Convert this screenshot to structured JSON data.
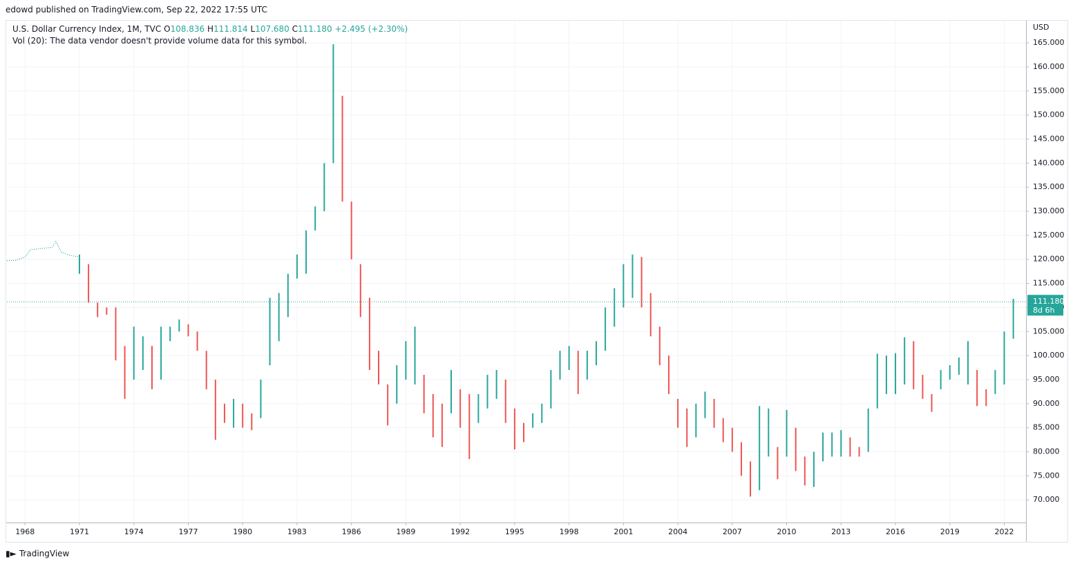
{
  "header": {
    "text": "edowd published on TradingView.com, Sep 22, 2022 17:55 UTC"
  },
  "chart_data": {
    "type": "range_bar",
    "title": "U.S. Dollar Currency Index, 1M, TVC",
    "legend": {
      "o_label": "O",
      "open": "108.836",
      "h_label": "H",
      "high": "111.814",
      "l_label": "L",
      "low": "107.680",
      "c_label": "C",
      "close": "111.180",
      "change": "+2.495 (+2.30%)"
    },
    "volume_note": "Vol (20): The data vendor doesn't provide volume data for this symbol.",
    "currency": "USD",
    "last_price": 111.18,
    "last_price_label": "111.180",
    "countdown": "8d 6h",
    "up_color": "#26a69a",
    "down_color": "#ef5350",
    "grid": true,
    "xlim": [
      1967,
      2023.2
    ],
    "ylim": [
      65.3,
      169.6
    ],
    "xticks": [
      1968,
      1971,
      1974,
      1977,
      1980,
      1983,
      1986,
      1989,
      1992,
      1995,
      1998,
      2001,
      2004,
      2007,
      2010,
      2013,
      2016,
      2019,
      2022
    ],
    "yticks": [
      {
        "value": 70,
        "label": "70.000"
      },
      {
        "value": 75,
        "label": "75.000"
      },
      {
        "value": 80,
        "label": "80.000"
      },
      {
        "value": 85,
        "label": "85.000"
      },
      {
        "value": 90,
        "label": "90.000"
      },
      {
        "value": 95,
        "label": "95.000"
      },
      {
        "value": 100,
        "label": "100.000"
      },
      {
        "value": 105,
        "label": "105.000"
      },
      {
        "value": 110,
        "label": "110.000"
      },
      {
        "value": 115,
        "label": "115.000"
      },
      {
        "value": 120,
        "label": "120.000"
      },
      {
        "value": 125,
        "label": "125.000"
      },
      {
        "value": 130,
        "label": "130.000"
      },
      {
        "value": 135,
        "label": "135.000"
      },
      {
        "value": 140,
        "label": "140.000"
      },
      {
        "value": 145,
        "label": "145.000"
      },
      {
        "value": 150,
        "label": "150.000"
      },
      {
        "value": 155,
        "label": "155.000"
      },
      {
        "value": 160,
        "label": "160.000"
      },
      {
        "value": 165,
        "label": "165.000"
      }
    ],
    "continuation": {
      "color": "#26a69a",
      "x": [
        1967,
        1967.5,
        1968,
        1968.3,
        1969,
        1969.5,
        1969.7,
        1970,
        1970.5,
        1971
      ],
      "values": [
        119.7,
        119.8,
        120.5,
        122,
        122.3,
        122.5,
        123.7,
        121.5,
        120.8,
        120.5
      ]
    },
    "x": [
      1971,
      1971.5,
      1972,
      1972.5,
      1973,
      1973.5,
      1974,
      1974.5,
      1975,
      1975.5,
      1976,
      1976.5,
      1977,
      1977.5,
      1978,
      1978.5,
      1979,
      1979.5,
      1980,
      1980.5,
      1981,
      1981.5,
      1982,
      1982.5,
      1983,
      1983.5,
      1984,
      1984.5,
      1985,
      1985.5,
      1986,
      1986.5,
      1987,
      1987.5,
      1988,
      1988.5,
      1989,
      1989.5,
      1990,
      1990.5,
      1991,
      1991.5,
      1992,
      1992.5,
      1993,
      1993.5,
      1994,
      1994.5,
      1995,
      1995.5,
      1996,
      1996.5,
      1997,
      1997.5,
      1998,
      1998.5,
      1999,
      1999.5,
      2000,
      2000.5,
      2001,
      2001.5,
      2002,
      2002.5,
      2003,
      2003.5,
      2004,
      2004.5,
      2005,
      2005.5,
      2006,
      2006.5,
      2007,
      2007.5,
      2008,
      2008.5,
      2009,
      2009.5,
      2010,
      2010.5,
      2011,
      2011.5,
      2012,
      2012.5,
      2013,
      2013.5,
      2014,
      2014.5,
      2015,
      2015.5,
      2016,
      2016.5,
      2017,
      2017.5,
      2018,
      2018.5,
      2019,
      2019.5,
      2020,
      2020.5,
      2021,
      2021.5,
      2022,
      2022.5
    ],
    "high": [
      121,
      119,
      111,
      110,
      110,
      102,
      106,
      104,
      102,
      106,
      106,
      107.5,
      106.5,
      105,
      101,
      95,
      90,
      91,
      90,
      88,
      95,
      112,
      113,
      117,
      121,
      126,
      131,
      140,
      164.7,
      154,
      132,
      119,
      112,
      101,
      94,
      98,
      103,
      106,
      96,
      92,
      90,
      97,
      93,
      92,
      92,
      96,
      97,
      95,
      89,
      86,
      88,
      90,
      97,
      101,
      102,
      101,
      101,
      103,
      110,
      114,
      119,
      121,
      120.5,
      113,
      106,
      100,
      91,
      89,
      90,
      92.5,
      91,
      87,
      85,
      82,
      78,
      89.5,
      89,
      81,
      88.7,
      85,
      79,
      80,
      84,
      84,
      84.5,
      83,
      81,
      89,
      100.4,
      100,
      100.5,
      103.8,
      103,
      96,
      92,
      97,
      98,
      99.6,
      103,
      97,
      93,
      97,
      105,
      111.8
    ],
    "low": [
      117,
      111,
      108,
      108.5,
      99,
      91,
      95,
      97,
      93,
      95,
      103,
      105,
      104,
      101,
      93,
      82.5,
      86,
      85,
      85,
      84.5,
      87,
      98,
      103,
      108,
      116,
      117,
      126,
      130,
      140,
      132,
      120,
      108,
      97,
      94,
      85.5,
      90,
      95,
      94,
      88,
      83,
      81,
      88,
      85,
      78.5,
      86,
      89,
      91,
      86,
      80.5,
      82,
      85,
      86,
      89,
      95,
      97,
      92,
      95,
      98,
      101,
      106,
      110,
      112,
      110,
      104,
      98,
      92,
      85,
      81,
      83,
      87,
      85,
      82,
      80,
      75,
      70.7,
      72,
      79,
      74.3,
      79,
      76,
      73,
      72.7,
      78,
      79,
      79,
      79,
      79,
      80,
      89,
      92,
      92,
      94,
      93,
      91,
      88.3,
      93,
      95,
      96,
      94,
      89.5,
      89.5,
      92,
      94,
      103.5
    ]
  },
  "footer": {
    "brand": "TradingView"
  }
}
